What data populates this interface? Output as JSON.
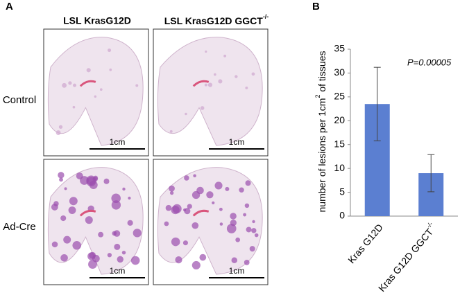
{
  "panel_a": {
    "label": "A",
    "columns": [
      "LSL KrasG12D",
      {
        "text": "LSL KrasG12D GGCT",
        "sup": "-/-"
      }
    ],
    "rows": [
      "Control",
      "Ad-Cre"
    ],
    "scale_bars": [
      "1cm",
      "1cm",
      "1cm",
      "1cm"
    ]
  },
  "chart_data": {
    "type": "bar",
    "panel_label": "B",
    "y_label": {
      "text": "number of lesions per 1cm",
      "sup": "2",
      "after": " of tissues"
    },
    "categories": [
      "Kras G12D",
      {
        "text": "Kras G12D GGCT",
        "sup": "-/-"
      }
    ],
    "values": [
      23.5,
      9
    ],
    "errors": [
      7.7,
      3.9
    ],
    "color": "#5b7fd1",
    "annotation": "P=0.00005",
    "ylim": [
      0,
      35
    ],
    "yticks": [
      0,
      5,
      10,
      15,
      20,
      25,
      30,
      35
    ],
    "grid": false
  }
}
